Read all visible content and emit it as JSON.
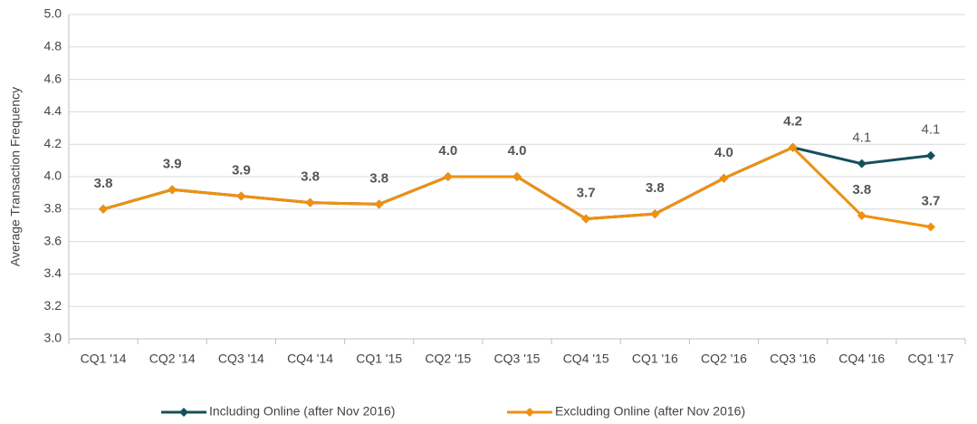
{
  "chart_data": {
    "type": "line",
    "y_label": "Average Transaction Frequency",
    "categories": [
      "CQ1 '14",
      "CQ2 '14",
      "CQ3 '14",
      "CQ4 '14",
      "CQ1 '15",
      "CQ2 '15",
      "CQ3 '15",
      "CQ4 '15",
      "CQ1 '16",
      "CQ2 '16",
      "CQ3 '16",
      "CQ4 '16",
      "CQ1 '17"
    ],
    "series": [
      {
        "name": "Including Online (after Nov 2016)",
        "color": "#14505c",
        "values": [
          3.8,
          3.92,
          3.88,
          3.84,
          3.83,
          4.0,
          4.0,
          3.74,
          3.77,
          3.99,
          4.18,
          4.08,
          4.13
        ],
        "value_labels": [
          null,
          null,
          null,
          null,
          null,
          null,
          null,
          null,
          null,
          null,
          null,
          "4.1",
          "4.1"
        ]
      },
      {
        "name": "Excluding Online (after Nov 2016)",
        "color": "#f0900f",
        "values": [
          3.8,
          3.92,
          3.88,
          3.84,
          3.83,
          4.0,
          4.0,
          3.74,
          3.77,
          3.99,
          4.18,
          3.76,
          3.69
        ],
        "value_labels": [
          "3.8",
          "3.9",
          "3.9",
          "3.8",
          "3.8",
          "4.0",
          "4.0",
          "3.7",
          "3.8",
          "4.0",
          "4.2",
          "3.8",
          "3.7"
        ]
      }
    ],
    "ylim": [
      3.0,
      5.0
    ],
    "yticks": [
      {
        "value": 3.0,
        "label": "3.0"
      },
      3.2,
      3.4,
      3.6,
      3.8,
      {
        "value": 4.0,
        "label": "4.0"
      },
      4.2,
      4.4,
      4.6,
      4.8,
      {
        "value": 5.0,
        "label": "5.0"
      }
    ],
    "grid": true,
    "legend": "bottom"
  }
}
